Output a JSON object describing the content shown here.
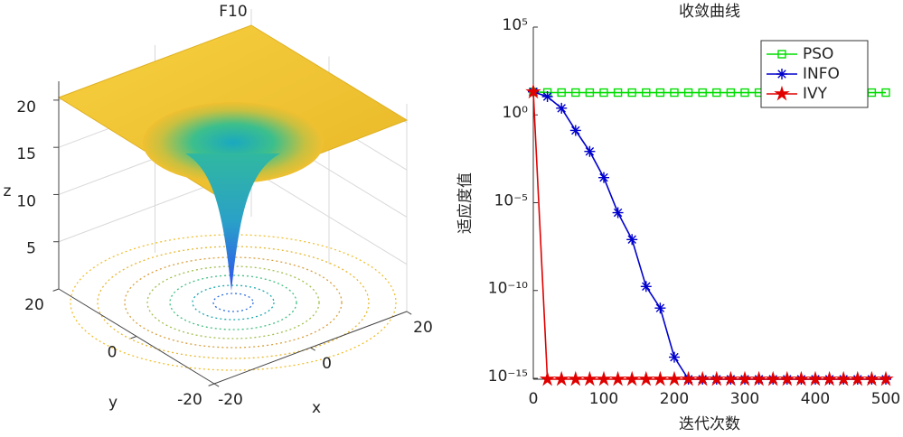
{
  "chart_data": [
    {
      "type": "surface",
      "title": "F10",
      "xlabel": "x",
      "ylabel": "y",
      "zlabel": "z",
      "xlim": [
        -20,
        20
      ],
      "ylim": [
        -20,
        20
      ],
      "zlim": [
        0,
        22
      ],
      "xticks": [
        -20,
        0,
        20
      ],
      "yticks": [
        -20,
        0,
        20
      ],
      "zticks": [
        5,
        10,
        15,
        20
      ]
    },
    {
      "type": "line",
      "title": "收敛曲线",
      "xlabel": "迭代次数",
      "ylabel": "适应度值",
      "log_y": true,
      "legend": "upper right",
      "x": [
        0,
        20,
        40,
        60,
        80,
        100,
        120,
        140,
        160,
        180,
        200,
        220,
        240,
        260,
        280,
        300,
        320,
        340,
        360,
        380,
        400,
        420,
        440,
        460,
        480,
        500
      ],
      "xlim": [
        0,
        500
      ],
      "xticks": [
        0,
        100,
        200,
        300,
        400,
        500
      ],
      "ylim": [
        8.88e-16,
        100000
      ],
      "yticks": [
        {
          "value": 100000,
          "label": "10⁵"
        },
        {
          "value": 1,
          "label": "10⁰"
        },
        {
          "value": 1e-05,
          "label": "10⁻⁵"
        },
        {
          "value": 1e-10,
          "label": "10⁻¹⁰"
        },
        {
          "value": 1e-15,
          "label": "10⁻¹⁵"
        }
      ],
      "series": [
        {
          "name": "PSO",
          "color": "#00dd00",
          "marker": "square",
          "values": [
            20.5,
            19,
            18.8,
            18.7,
            18.6,
            18.6,
            18.6,
            18.6,
            18.6,
            18.6,
            18.6,
            18.6,
            18.6,
            18.6,
            18.6,
            18.6,
            18.6,
            18.6,
            18.6,
            18.6,
            18.6,
            18.6,
            18.6,
            18.6,
            18.6,
            18.6
          ]
        },
        {
          "name": "INFO",
          "color": "#0000cc",
          "marker": "asterisk",
          "values": [
            20.5,
            11,
            2.4,
            0.13,
            0.0083,
            0.00027,
            2.7e-06,
            8e-08,
            1.7e-10,
            1e-11,
            1.6e-14,
            8.88e-16,
            8.88e-16,
            8.88e-16,
            8.88e-16,
            8.88e-16,
            8.88e-16,
            8.88e-16,
            8.88e-16,
            8.88e-16,
            8.88e-16,
            8.88e-16,
            8.88e-16,
            8.88e-16,
            8.88e-16,
            8.88e-16
          ]
        },
        {
          "name": "IVY",
          "color": "#e00000",
          "marker": "star",
          "values": [
            20.5,
            8.88e-16,
            8.88e-16,
            8.88e-16,
            8.88e-16,
            8.88e-16,
            8.88e-16,
            8.88e-16,
            8.88e-16,
            8.88e-16,
            8.88e-16,
            8.88e-16,
            8.88e-16,
            8.88e-16,
            8.88e-16,
            8.88e-16,
            8.88e-16,
            8.88e-16,
            8.88e-16,
            8.88e-16,
            8.88e-16,
            8.88e-16,
            8.88e-16,
            8.88e-16,
            8.88e-16,
            8.88e-16
          ]
        }
      ]
    }
  ]
}
